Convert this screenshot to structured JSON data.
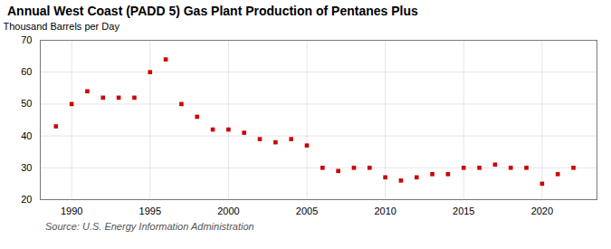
{
  "chart_data": {
    "type": "scatter",
    "title": "Annual West Coast (PADD 5) Gas Plant Production of Pentanes Plus",
    "ylabel": "Thousand Barrels per Day",
    "annotations": [
      "Source: U.S. Energy Information Administration"
    ],
    "x": [
      1989,
      1990,
      1991,
      1992,
      1993,
      1994,
      1995,
      1996,
      1997,
      1998,
      1999,
      2000,
      2001,
      2002,
      2003,
      2004,
      2005,
      2006,
      2007,
      2008,
      2009,
      2010,
      2011,
      2012,
      2013,
      2014,
      2015,
      2016,
      2017,
      2018,
      2019,
      2020,
      2021,
      2022
    ],
    "values": [
      43,
      50,
      54,
      52,
      52,
      52,
      60,
      64,
      50,
      46,
      42,
      42,
      41,
      39,
      38,
      39,
      37,
      30,
      29,
      30,
      30,
      27,
      26,
      27,
      28,
      28,
      30,
      30,
      31,
      30,
      30,
      25,
      28,
      30
    ],
    "color": "#cc0000",
    "marker": "square",
    "xlim": [
      1988.0,
      2023.5
    ],
    "ylim": [
      20,
      70
    ],
    "xticks": [
      1990,
      1995,
      2000,
      2005,
      2010,
      2015,
      2020
    ],
    "yticks": [
      20,
      30,
      40,
      50,
      60,
      70
    ],
    "grid": true
  }
}
